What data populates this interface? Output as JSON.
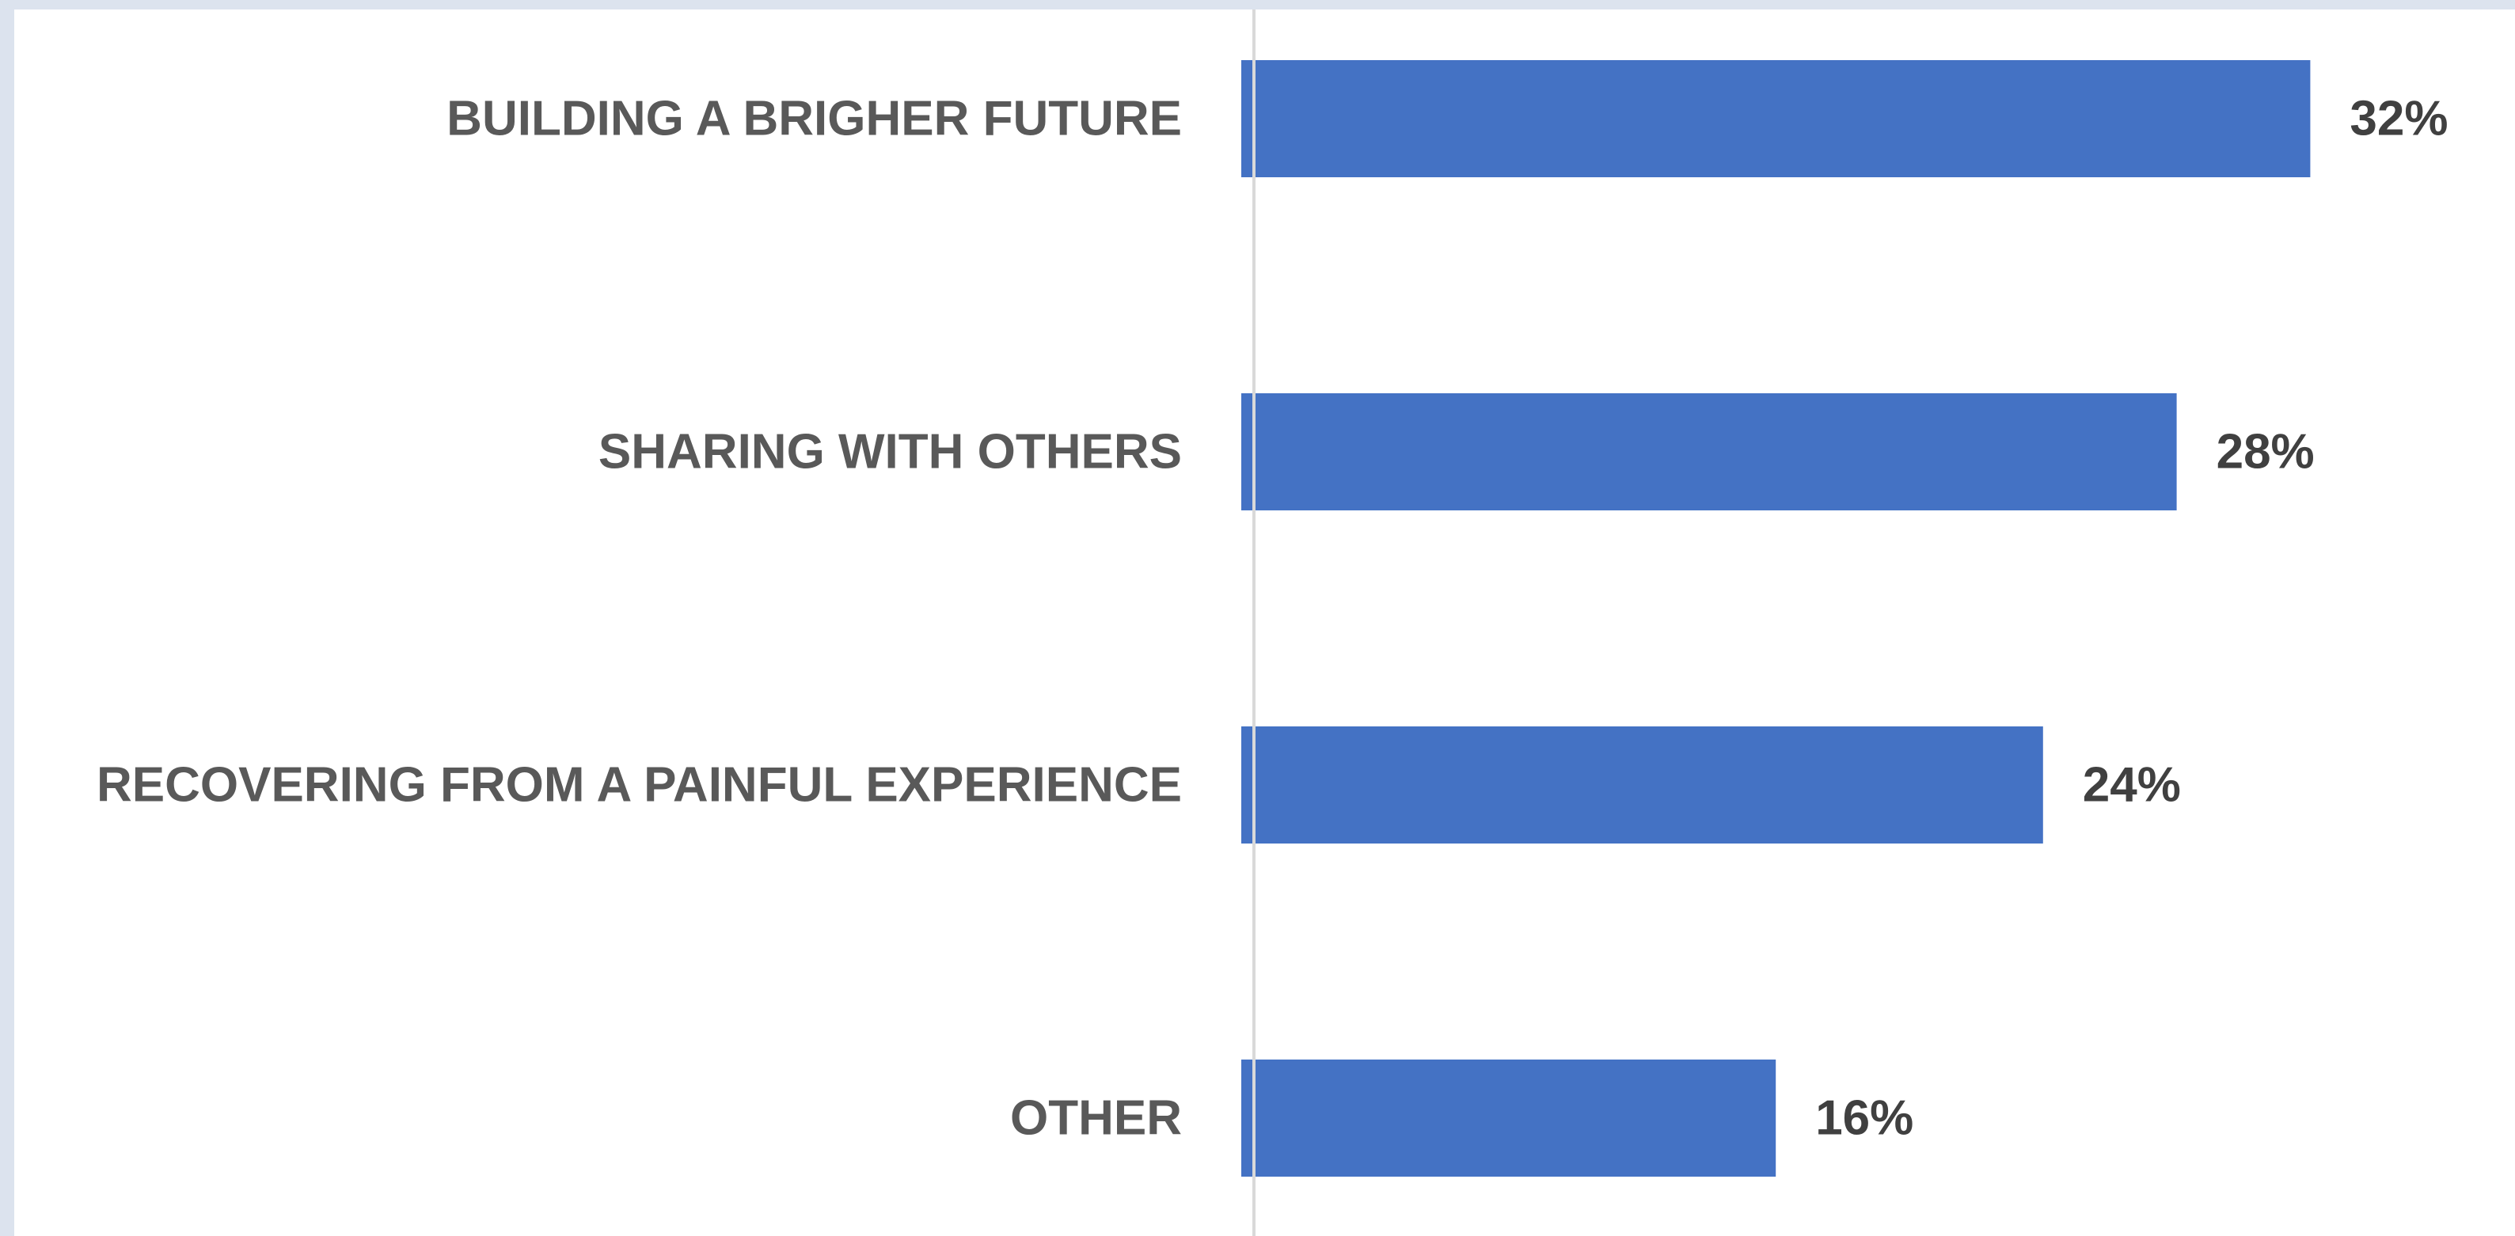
{
  "chart_data": {
    "type": "bar",
    "orientation": "horizontal",
    "categories": [
      "BUILDING A BRIGHER FUTURE",
      "SHARING WITH OTHERS",
      "RECOVERING FROM A PAINFUL EXPERIENCE",
      "OTHER"
    ],
    "values": [
      32,
      28,
      24,
      16
    ],
    "value_labels": [
      "32%",
      "28%",
      "24%",
      "16%"
    ],
    "unit": "%",
    "xlim": [
      0,
      36
    ],
    "grid": false,
    "legend": "none",
    "colors": {
      "bar": "#4472c4",
      "category_text": "#595959",
      "value_text": "#404040",
      "axis": "#d9d9d9",
      "background": "#ffffff",
      "frame": "#dce3ee"
    }
  }
}
